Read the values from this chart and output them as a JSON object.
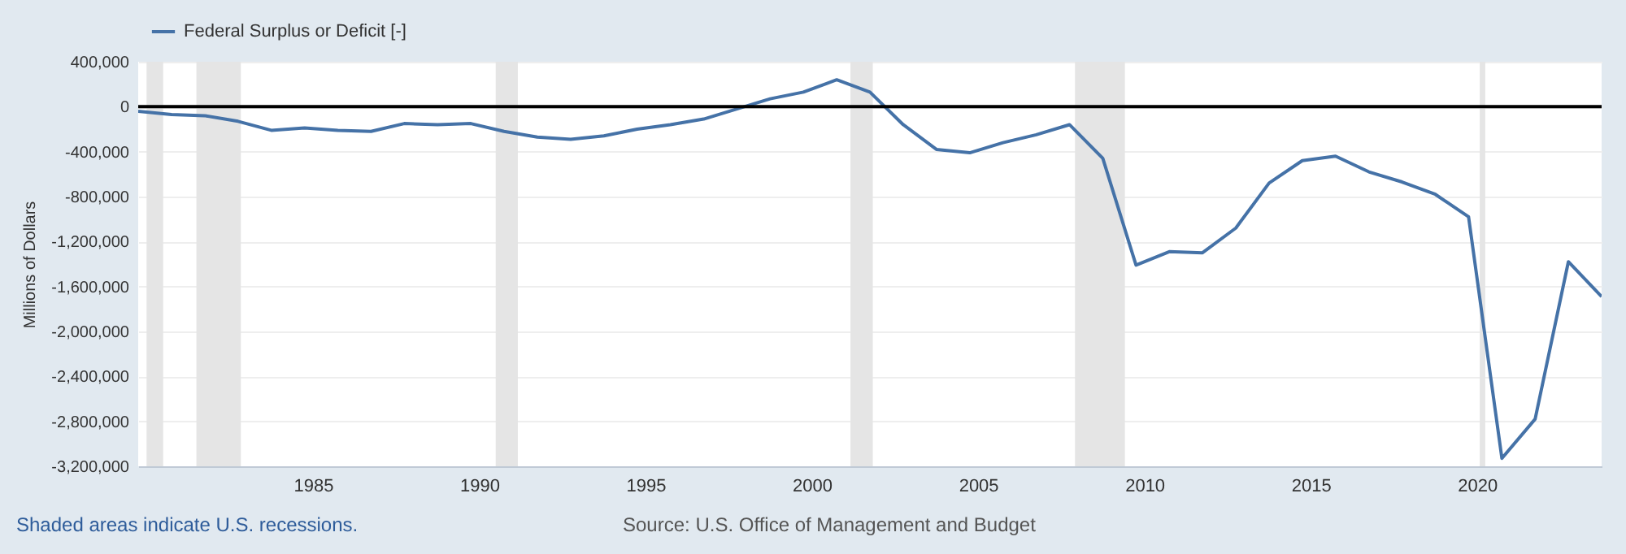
{
  "chart_data": {
    "type": "line",
    "ylabel": "Millions of Dollars",
    "x": [
      "1979-10-01",
      "1980-10-01",
      "1981-10-01",
      "1982-10-01",
      "1983-10-01",
      "1984-10-01",
      "1985-10-01",
      "1986-10-01",
      "1987-10-01",
      "1988-10-01",
      "1989-10-01",
      "1990-10-01",
      "1991-10-01",
      "1992-10-01",
      "1993-10-01",
      "1994-10-01",
      "1995-10-01",
      "1996-10-01",
      "1997-10-01",
      "1998-10-01",
      "1999-10-01",
      "2000-10-01",
      "2001-10-01",
      "2002-10-01",
      "2003-10-01",
      "2004-10-01",
      "2005-10-01",
      "2006-10-01",
      "2007-10-01",
      "2008-10-01",
      "2009-10-01",
      "2010-10-01",
      "2011-10-01",
      "2012-10-01",
      "2013-10-01",
      "2014-10-01",
      "2015-10-01",
      "2016-10-01",
      "2017-10-01",
      "2018-10-01",
      "2019-10-01",
      "2020-10-01",
      "2021-10-01",
      "2022-10-01",
      "2023-10-01"
    ],
    "series": [
      {
        "name": "Federal Surplus or Deficit [-]",
        "color": "#4572a7",
        "values": [
          -40000,
          -70000,
          -80000,
          -130000,
          -210000,
          -190000,
          -210000,
          -220000,
          -150000,
          -160000,
          -150000,
          -220000,
          -270000,
          -290000,
          -260000,
          -200000,
          -160000,
          -110000,
          -20000,
          70000,
          130000,
          240000,
          130000,
          -160000,
          -380000,
          -410000,
          -320000,
          -250000,
          -160000,
          -460000,
          -1410000,
          -1290000,
          -1300000,
          -1080000,
          -680000,
          -480000,
          -440000,
          -580000,
          -670000,
          -780000,
          -980000,
          -3130000,
          -2780000,
          -1380000,
          -1690000
        ]
      }
    ],
    "xlim": [
      "1979-10-01",
      "2023-10-01"
    ],
    "xticks": [
      {
        "value": "1985-01-01",
        "label": "1985"
      },
      {
        "value": "1990-01-01",
        "label": "1990"
      },
      {
        "value": "1995-01-01",
        "label": "1995"
      },
      {
        "value": "2000-01-01",
        "label": "2000"
      },
      {
        "value": "2005-01-01",
        "label": "2005"
      },
      {
        "value": "2010-01-01",
        "label": "2010"
      },
      {
        "value": "2015-01-01",
        "label": "2015"
      },
      {
        "value": "2020-01-01",
        "label": "2020"
      }
    ],
    "ylim": [
      -3200000,
      400000
    ],
    "yticks": [
      {
        "value": -3200000,
        "label": "-3,200,000"
      },
      {
        "value": -2800000,
        "label": "-2,800,000"
      },
      {
        "value": -2400000,
        "label": "-2,400,000"
      },
      {
        "value": -2000000,
        "label": "-2,000,000"
      },
      {
        "value": -1600000,
        "label": "-1,600,000"
      },
      {
        "value": -1200000,
        "label": "-1,200,000"
      },
      {
        "value": -800000,
        "label": "-800,000"
      },
      {
        "value": -400000,
        "label": "-400,000"
      },
      0,
      {
        "value": 400000,
        "label": "400,000"
      }
    ],
    "grid": "y",
    "legend": "top left",
    "line_style": "solid",
    "marker": "none",
    "ref_lines": [
      {
        "axis": "y",
        "value": 0,
        "color": "#000000"
      }
    ],
    "bands": [
      {
        "axis": "x",
        "from": "1980-01-01",
        "to": "1980-07-01",
        "color": "#e5e5e5"
      },
      {
        "axis": "x",
        "from": "1981-07-01",
        "to": "1982-11-01",
        "color": "#e5e5e5"
      },
      {
        "axis": "x",
        "from": "1990-07-01",
        "to": "1991-03-01",
        "color": "#e5e5e5"
      },
      {
        "axis": "x",
        "from": "2001-03-01",
        "to": "2001-11-01",
        "color": "#e5e5e5"
      },
      {
        "axis": "x",
        "from": "2007-12-01",
        "to": "2009-06-01",
        "color": "#e5e5e5"
      },
      {
        "axis": "x",
        "from": "2020-02-01",
        "to": "2020-04-01",
        "color": "#e5e5e5"
      }
    ],
    "annotations": [
      "Shaded areas indicate U.S. recessions.",
      "Source: U.S. Office of Management and Budget"
    ]
  }
}
